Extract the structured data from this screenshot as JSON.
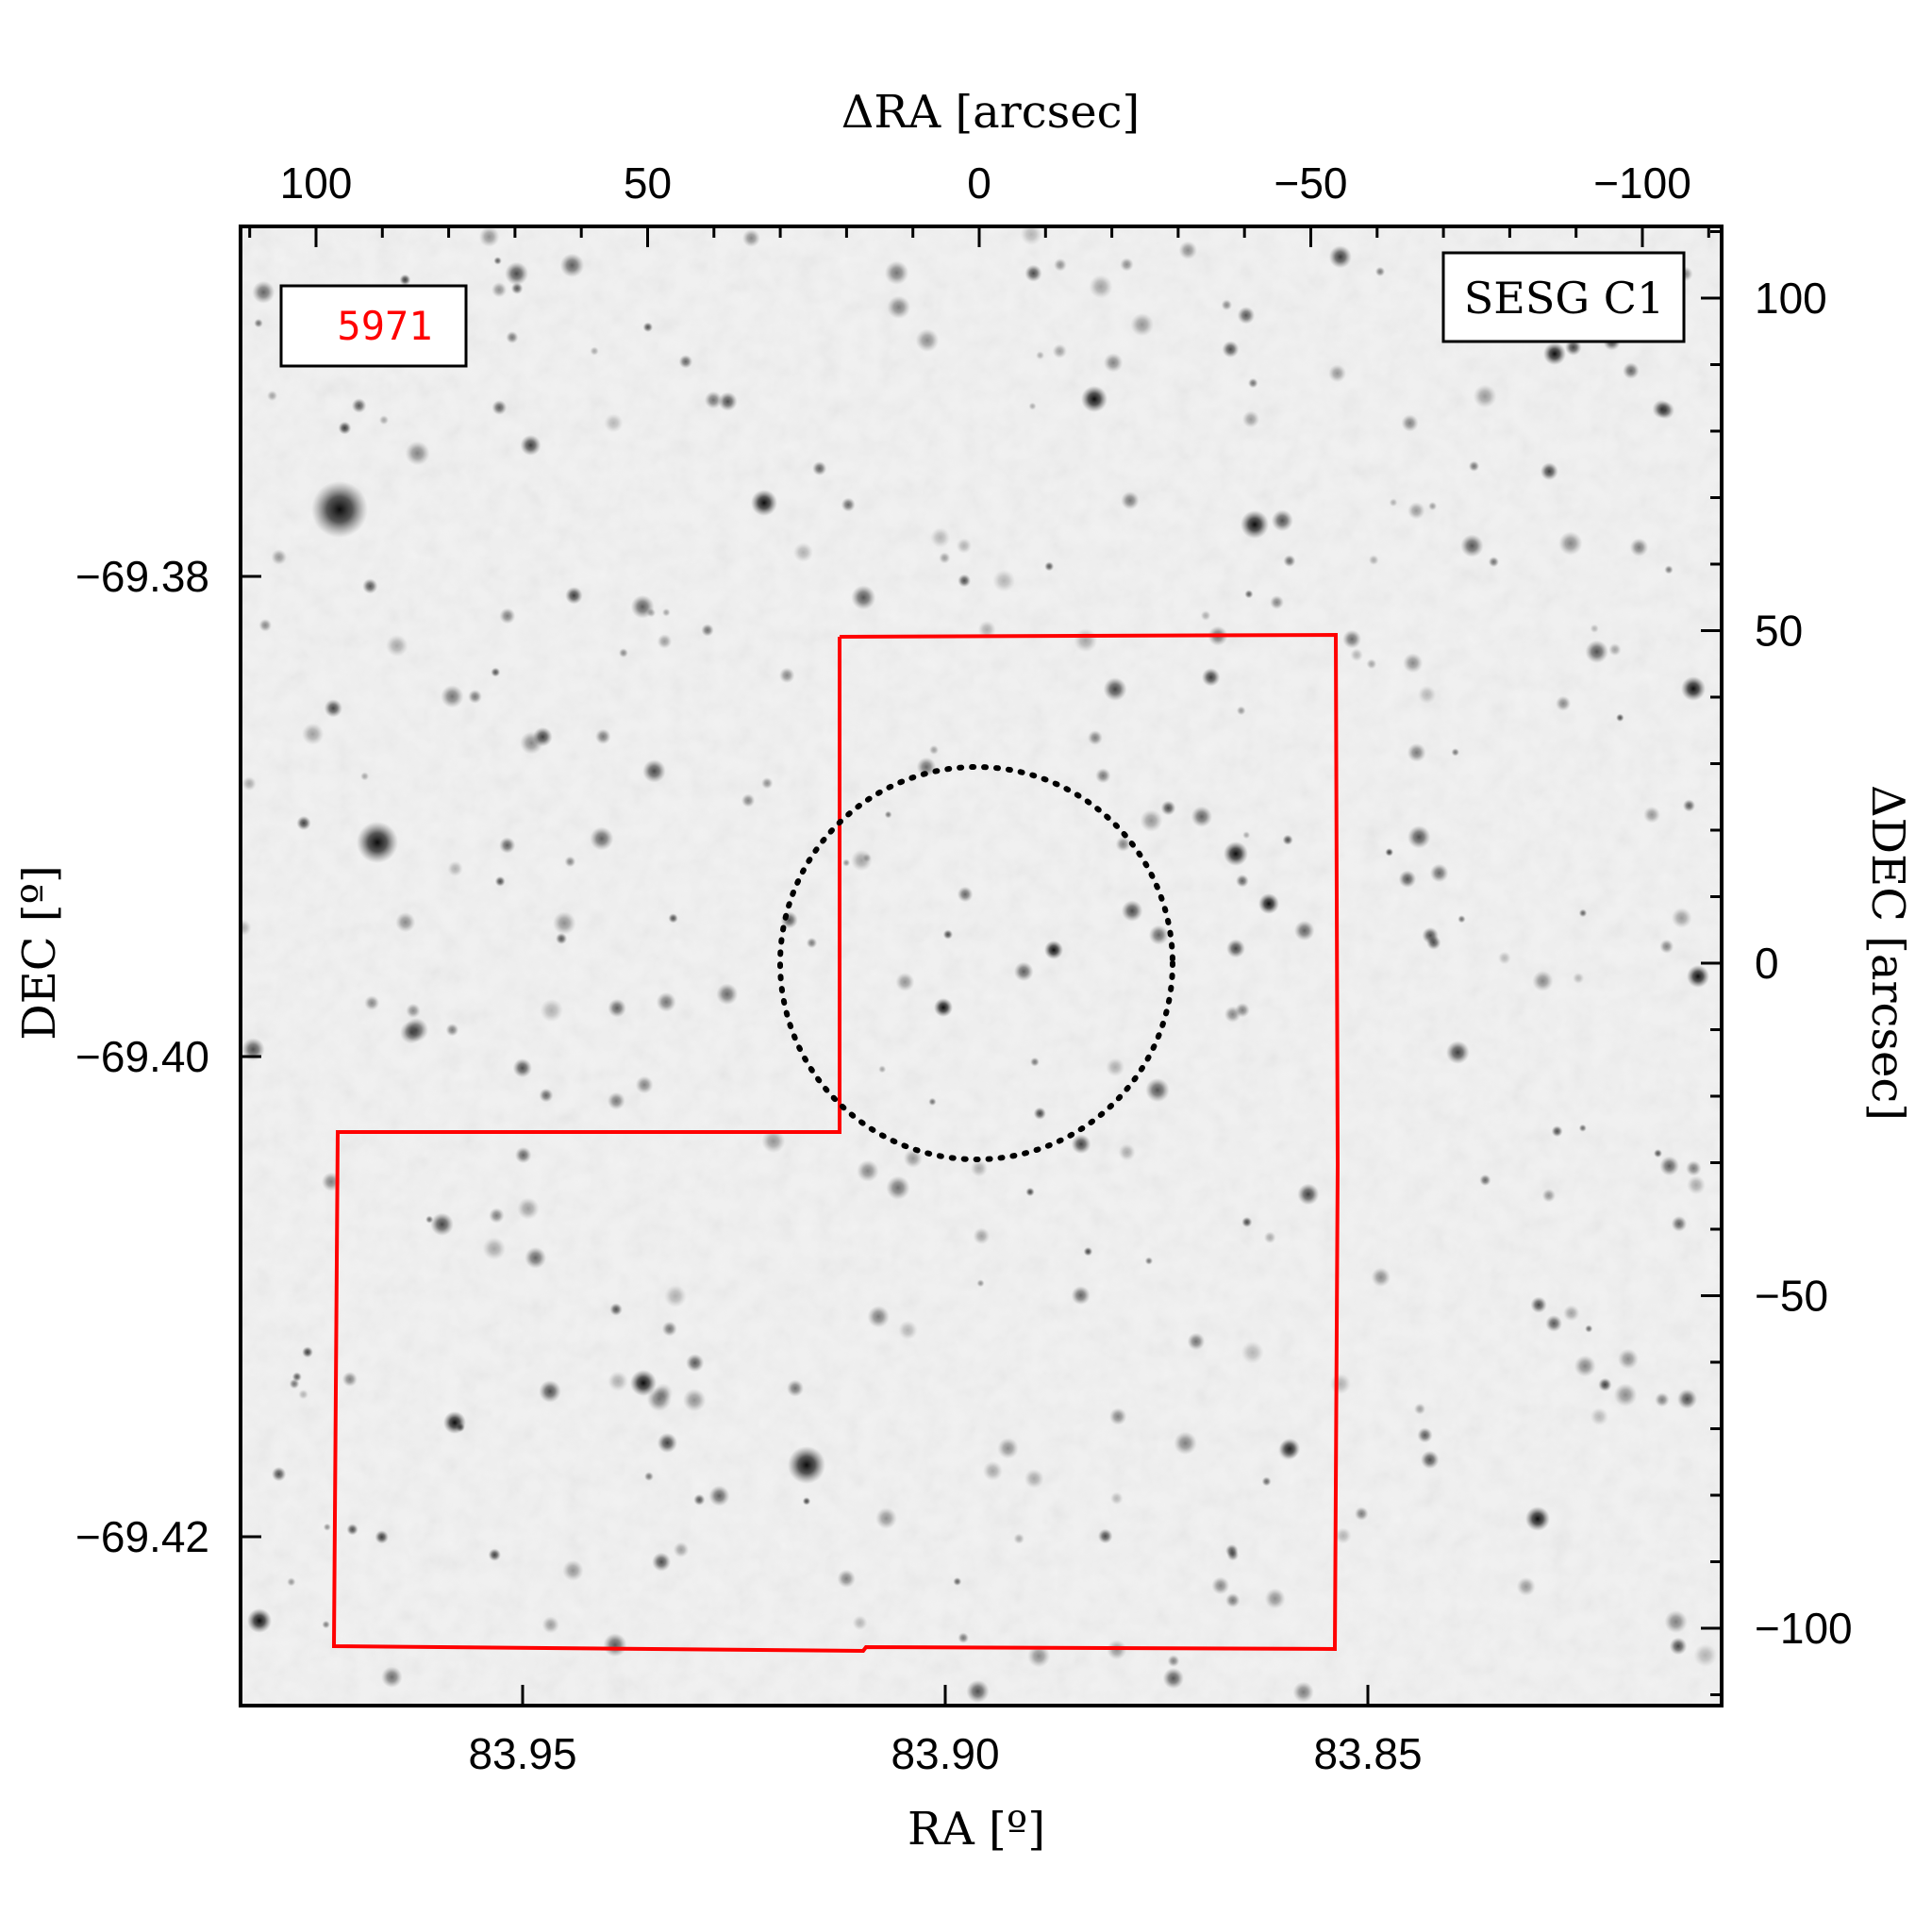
{
  "figure": {
    "top_axis": {
      "label": "ΔRA [arcsec]",
      "ticks": [
        {
          "value": 100,
          "label": "100"
        },
        {
          "value": 50,
          "label": "50"
        },
        {
          "value": 0,
          "label": "0"
        },
        {
          "value": -50,
          "label": "−50"
        },
        {
          "value": -100,
          "label": "−100"
        }
      ],
      "range": [
        111,
        -112
      ]
    },
    "right_axis": {
      "label": "ΔDEC [arcsec]",
      "ticks": [
        {
          "value": 100,
          "label": "100"
        },
        {
          "value": 50,
          "label": "50"
        },
        {
          "value": 0,
          "label": "0"
        },
        {
          "value": -50,
          "label": "−50"
        },
        {
          "value": -100,
          "label": "−100"
        }
      ],
      "range": [
        -111,
        111
      ]
    },
    "bottom_axis": {
      "label": "RA [º]",
      "ticks": [
        {
          "value": 83.95,
          "label": "83.95"
        },
        {
          "value": 83.9,
          "label": "83.90"
        },
        {
          "value": 83.85,
          "label": "83.85"
        }
      ]
    },
    "left_axis": {
      "label": "DEC [º]",
      "ticks": [
        {
          "value": -69.38,
          "label": "−69.38"
        },
        {
          "value": -69.4,
          "label": "−69.40"
        },
        {
          "value": -69.42,
          "label": "−69.42"
        }
      ]
    },
    "id_box": {
      "text": "5971",
      "color": "#ff0000"
    },
    "name_box": {
      "text": "SESG C1"
    },
    "footprint_color": "#ff0000",
    "circle_radius_arcsec": 30
  }
}
